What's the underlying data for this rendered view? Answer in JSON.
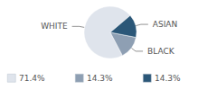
{
  "chart_data": {
    "type": "pie",
    "categories": [
      "WHITE",
      "BLACK",
      "ASIAN"
    ],
    "values": [
      71.4,
      14.3,
      14.3
    ],
    "value_labels": [
      "71.4%",
      "14.3%",
      "14.3%"
    ],
    "colors": [
      "#dfe4ec",
      "#8e9fb3",
      "#2b5778"
    ]
  }
}
